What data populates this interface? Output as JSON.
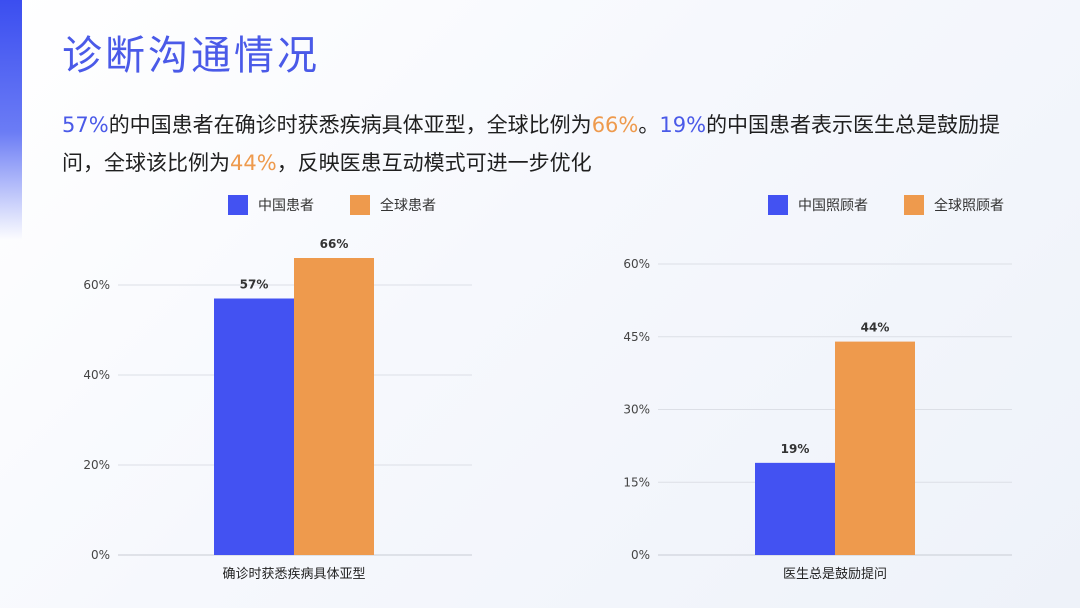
{
  "title": "诊断沟通情况",
  "description": {
    "p1": "57%",
    "p2": "的中国患者在确诊时获悉疾病具体亚型，全球比例为",
    "p3": "66%",
    "p4": "。",
    "p5": "19%",
    "p6": "的中国患者表示医生总是鼓励提问，全球该比例为",
    "p7": "44%",
    "p8": "，反映医患互动模式可进一步优化"
  },
  "colors": {
    "china": "#4352f2",
    "global": "#ee9a4d",
    "title": "#4a5ae8",
    "grid": "#dcdfe6"
  },
  "chart_data": [
    {
      "type": "bar",
      "categories": [
        "确诊时获悉疾病具体亚型"
      ],
      "series": [
        {
          "name": "中国患者",
          "values": [
            57
          ],
          "labels": [
            "57%"
          ]
        },
        {
          "name": "全球患者",
          "values": [
            66
          ],
          "labels": [
            "66%"
          ]
        }
      ],
      "ylim": [
        0,
        70
      ],
      "yticks": [
        0,
        20,
        40,
        60
      ],
      "ytick_labels": [
        "0%",
        "20%",
        "40%",
        "60%"
      ],
      "grid": true,
      "legend": "top"
    },
    {
      "type": "bar",
      "categories": [
        "医生总是鼓励提问"
      ],
      "series": [
        {
          "name": "中国照顾者",
          "values": [
            19
          ],
          "labels": [
            "19%"
          ]
        },
        {
          "name": "全球照顾者",
          "values": [
            44
          ],
          "labels": [
            "44%"
          ]
        }
      ],
      "ylim": [
        0,
        60
      ],
      "yticks": [
        0,
        15,
        30,
        45,
        60
      ],
      "ytick_labels": [
        "0%",
        "15%",
        "30%",
        "45%",
        "60%"
      ],
      "grid": true,
      "legend": "top"
    }
  ]
}
